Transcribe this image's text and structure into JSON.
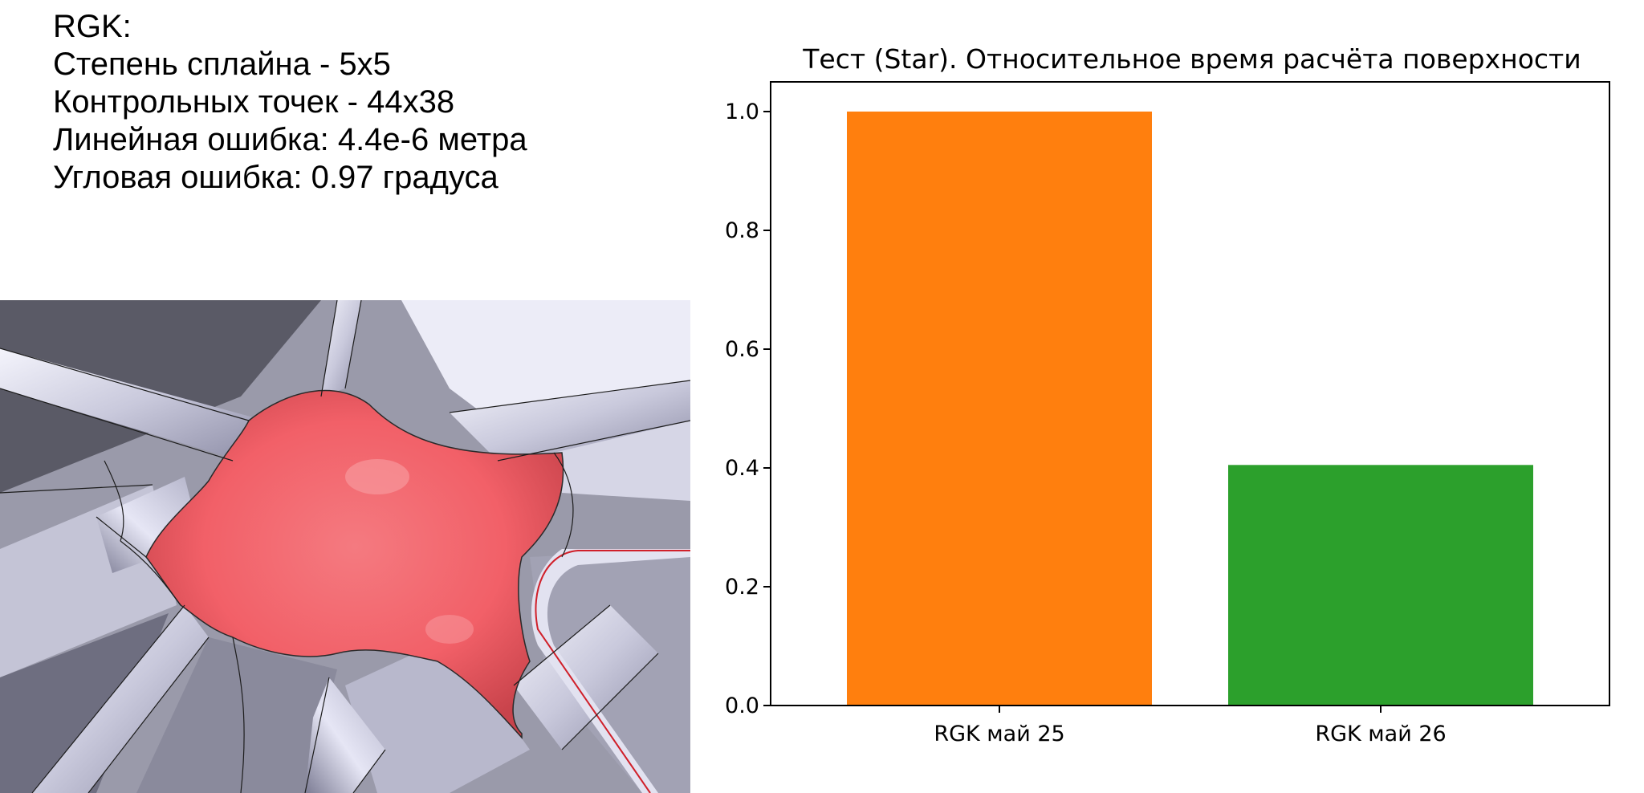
{
  "info_lines": [
    "RGK:",
    "Степень сплайна - 5x5",
    "Контрольных точек - 44x38",
    "Линейная ошибка: 4.4e-6 метра",
    "Угловая ошибка: 0.97 градуса"
  ],
  "chart_data": {
    "type": "bar",
    "title": "Тест (Star). Относительное время расчёта поверхности",
    "categories": [
      "RGK май 25",
      "RGK май 26"
    ],
    "values": [
      1.0,
      0.405
    ],
    "colors": [
      "#ff7f0e",
      "#2ca02c"
    ],
    "ylim": [
      0,
      1.05
    ],
    "yticks": [
      0.0,
      0.2,
      0.4,
      0.6,
      0.8,
      1.0
    ],
    "ytick_labels": [
      "0.0",
      "0.2",
      "0.4",
      "0.6",
      "0.8",
      "1.0"
    ],
    "xlabel": "",
    "ylabel": "",
    "grid": false,
    "legend": false
  },
  "image": {
    "subject": "3D render of a red blended star-junction surface over grey tubular branches",
    "highlight_color": "#f26068"
  }
}
